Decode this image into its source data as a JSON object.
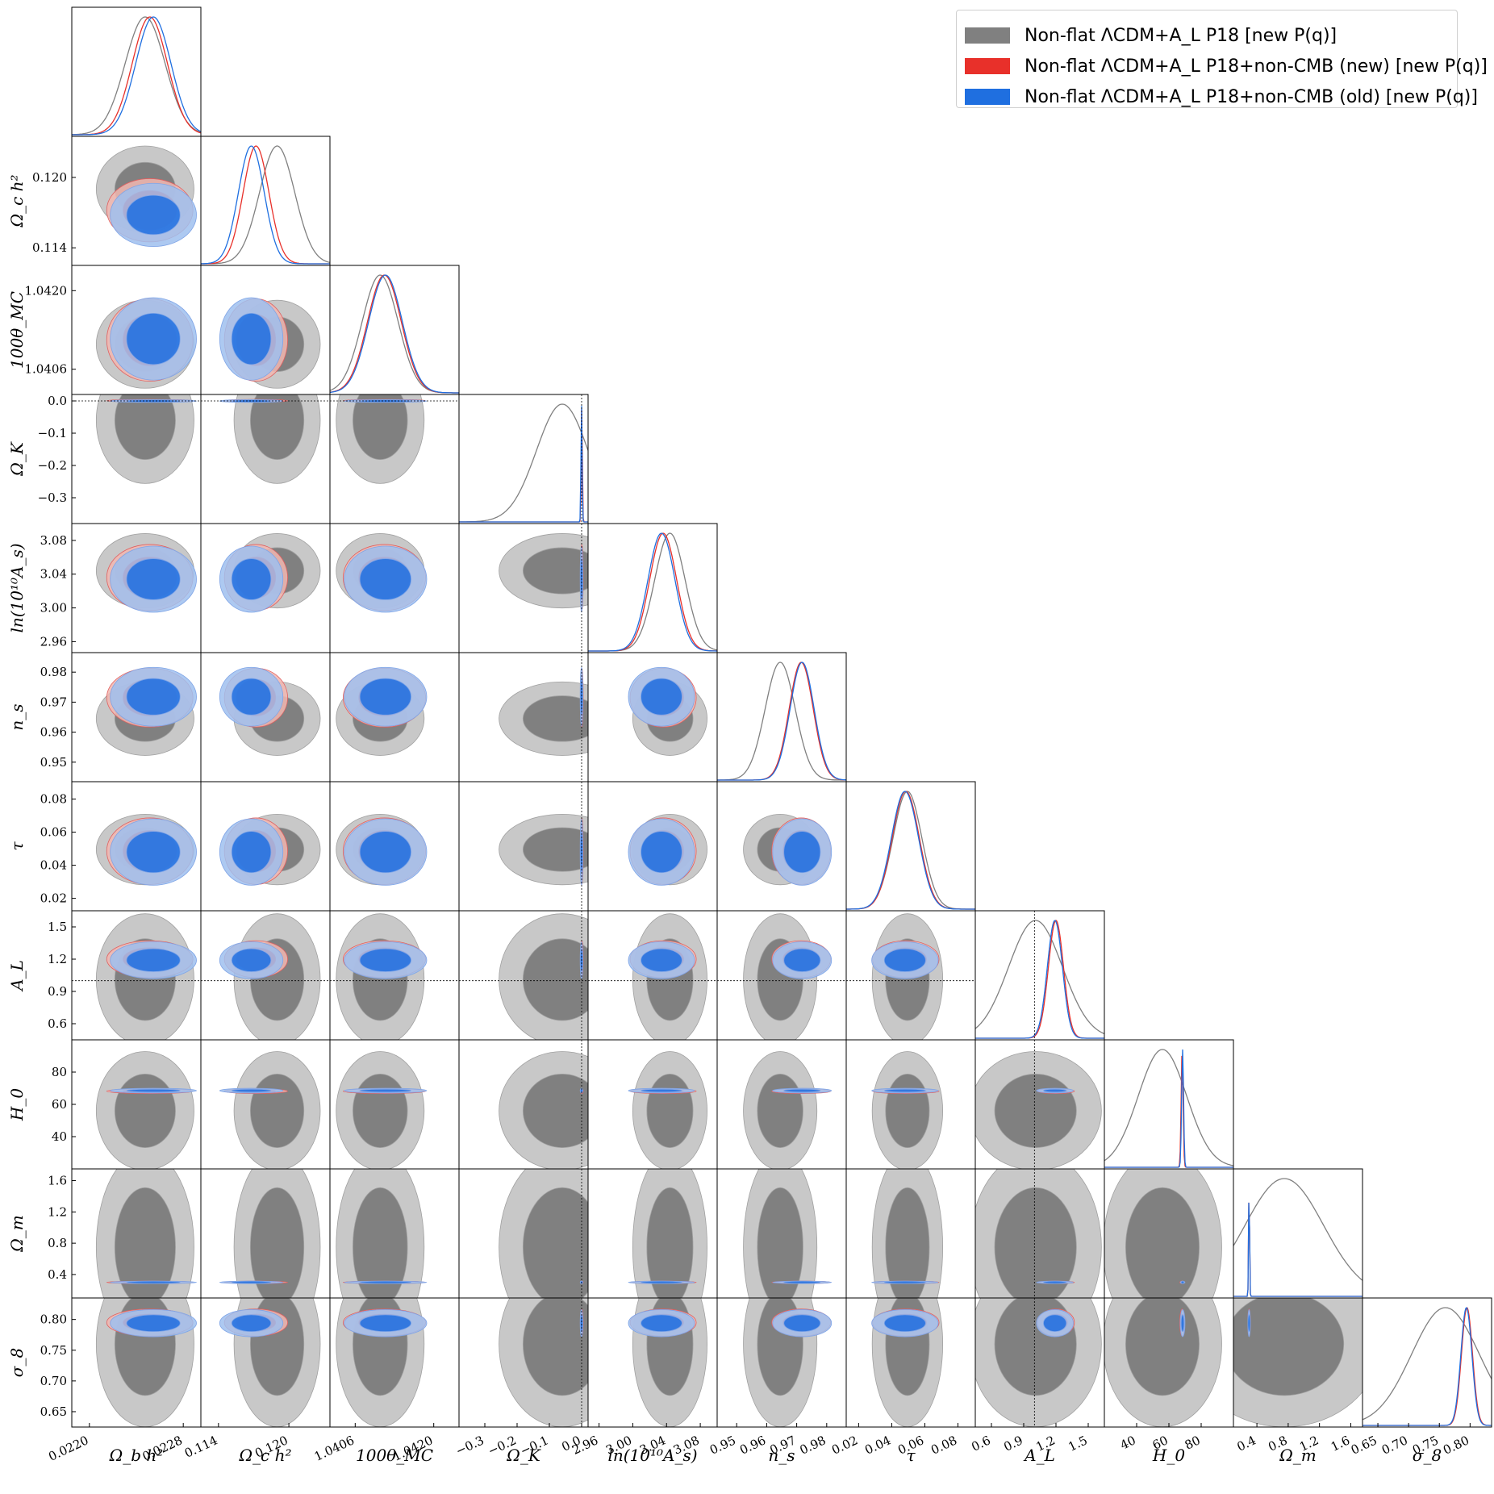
{
  "chart_data": {
    "type": "corner",
    "parameters": [
      {
        "key": "obh2",
        "label": "Ω_b h²",
        "ticks": [
          "0.0220",
          "0.0228"
        ],
        "tickvals": [
          0.022,
          0.0228
        ],
        "range": [
          0.02185,
          0.02295
        ]
      },
      {
        "key": "och2",
        "label": "Ω_c h²",
        "ticks": [
          "0.114",
          "0.120"
        ],
        "tickvals": [
          0.114,
          0.12
        ],
        "range": [
          0.1125,
          0.1235
        ]
      },
      {
        "key": "theta",
        "label": "100θ_MC",
        "ticks": [
          "1.0406",
          "1.0420"
        ],
        "tickvals": [
          1.0406,
          1.042
        ],
        "range": [
          1.04015,
          1.04245
        ]
      },
      {
        "key": "omk",
        "label": "Ω_K",
        "ticks": [
          "−0.3",
          "−0.2",
          "−0.1",
          "0.0"
        ],
        "tickvals": [
          -0.3,
          -0.2,
          -0.1,
          0.0
        ],
        "range": [
          -0.38,
          0.02
        ]
      },
      {
        "key": "lnAs",
        "label": "ln(10¹⁰A_s)",
        "ticks": [
          "2.96",
          "3.00",
          "3.04",
          "3.08"
        ],
        "tickvals": [
          2.96,
          3.0,
          3.04,
          3.08
        ],
        "range": [
          2.947,
          3.1
        ]
      },
      {
        "key": "ns",
        "label": "n_s",
        "ticks": [
          "0.95",
          "0.96",
          "0.97",
          "0.98"
        ],
        "tickvals": [
          0.95,
          0.96,
          0.97,
          0.98
        ],
        "range": [
          0.9435,
          0.9865
        ]
      },
      {
        "key": "tau",
        "label": "τ",
        "ticks": [
          "0.02",
          "0.04",
          "0.06",
          "0.08"
        ],
        "tickvals": [
          0.02,
          0.04,
          0.06,
          0.08
        ],
        "range": [
          0.0125,
          0.0905
        ]
      },
      {
        "key": "AL",
        "label": "A_L",
        "ticks": [
          "0.6",
          "0.9",
          "1.2",
          "1.5"
        ],
        "tickvals": [
          0.6,
          0.9,
          1.2,
          1.5
        ],
        "range": [
          0.45,
          1.65
        ]
      },
      {
        "key": "H0",
        "label": "H_0",
        "ticks": [
          "40",
          "60",
          "80"
        ],
        "tickvals": [
          40,
          60,
          80
        ],
        "range": [
          20,
          100
        ]
      },
      {
        "key": "Om",
        "label": "Ω_m",
        "ticks": [
          "0.4",
          "0.8",
          "1.2",
          "1.6"
        ],
        "tickvals": [
          0.4,
          0.8,
          1.2,
          1.6
        ],
        "range": [
          0.1,
          1.75
        ]
      },
      {
        "key": "s8",
        "label": "σ_8",
        "ticks": [
          "0.65",
          "0.70",
          "0.75",
          "0.80"
        ],
        "tickvals": [
          0.65,
          0.7,
          0.75,
          0.8
        ],
        "range": [
          0.625,
          0.835
        ]
      }
    ],
    "series": [
      {
        "name": "Non-flat ΛCDM+A_L P18 [new P(q)]",
        "color": "#808080",
        "light": "#c8c8c8",
        "edge": "#a0a0a0",
        "means": [
          0.022475,
          0.119,
          1.041045,
          -0.06,
          3.044,
          0.9645,
          0.0495,
          1.01,
          56,
          0.75,
          0.76
        ],
        "sig": [
          0.00017,
          0.0015,
          0.00032,
          0.08,
          0.018,
          0.005,
          0.0087,
          0.25,
          15,
          0.5,
          0.055
        ]
      },
      {
        "name": "Non-flat ΛCDM+A_L P18+non-CMB (new) [new P(q)]",
        "color": "#e8302a",
        "light": "#f2b7b0",
        "edge": "#e06060",
        "means": [
          0.022515,
          0.1172,
          1.04112,
          0.0005,
          3.036,
          0.9715,
          0.0485,
          1.2,
          68.2,
          0.3,
          0.795
        ],
        "sig": [
          0.00015,
          0.0011,
          0.0003,
          0.0017,
          0.016,
          0.004,
          0.0082,
          0.07,
          0.6,
          0.006,
          0.009
        ]
      },
      {
        "name": "Non-flat ΛCDM+A_L P18+non-CMB (old) [new P(q)]",
        "color": "#1f6fe0",
        "light": "#9fbfee",
        "edge": "#7fa4e6",
        "means": [
          0.022545,
          0.1168,
          1.04114,
          -0.0003,
          3.034,
          0.9718,
          0.048,
          1.19,
          68.5,
          0.3,
          0.794
        ],
        "sig": [
          0.00015,
          0.0011,
          0.0003,
          0.0017,
          0.016,
          0.004,
          0.0082,
          0.07,
          0.6,
          0.006,
          0.009
        ]
      }
    ],
    "reference_lines": {
      "omk": 0.0,
      "AL": 1.0
    },
    "legend_position": "top-right"
  },
  "legend": {
    "items": [
      {
        "text": "Non-flat ΛCDM+A_L P18 [new P(q)]",
        "color": "#808080"
      },
      {
        "text": "Non-flat ΛCDM+A_L P18+non-CMB (new) [new P(q)]",
        "color": "#e8302a"
      },
      {
        "text": "Non-flat ΛCDM+A_L P18+non-CMB (old) [new P(q)]",
        "color": "#1f6fe0"
      }
    ]
  }
}
